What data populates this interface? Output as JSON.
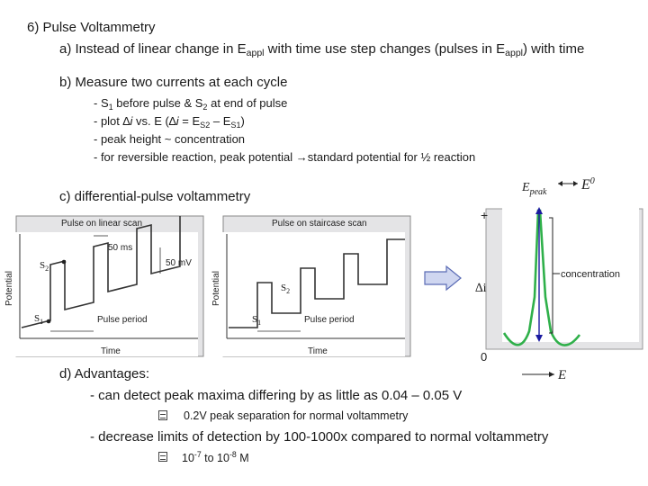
{
  "slide": {
    "heading": "6) Pulse  Voltammetry",
    "a_pre": "a) Instead of linear change in E",
    "a_sub1": "appl",
    "a_mid": " with time use step changes (pulses in E",
    "a_sub2": "appl",
    "a_post": ") with time",
    "b_title": "b) Measure two currents at each cycle",
    "b_items": {
      "i1_pre": "- S",
      "i1_s1": "1",
      "i1_mid": " before pulse & S",
      "i1_s2": "2",
      "i1_post": " at end of pulse",
      "i2_pre": "- plot ∆",
      "i2_i": "i",
      "i2_mid": " vs. E  (∆",
      "i2_i2": "i",
      "i2_eq": " = E",
      "i2_sub1": "S2",
      "i2_dash": " – E",
      "i2_sub2": "S1",
      "i2_post": ")",
      "i3": "- peak height ~ concentration",
      "i4": "- for reversible reaction, peak potential →standard potential for ½ reaction"
    },
    "c_title": "c) differential-pulse voltammetry",
    "d_title": "d) Advantages:",
    "d_item1": "- can detect peak maxima differing by as little as 0.04 – 0.05 V",
    "d_sub1": "0.2V peak separation for normal voltammetry",
    "d_item2": "- decrease limits of detection by 100-1000x compared to normal voltammetry",
    "d_sub2_pre": "10",
    "d_sub2_exp1": "-7",
    "d_sub2_mid": " to 10",
    "d_sub2_exp2": "-8",
    "d_sub2_post": " M"
  },
  "figure_linear": {
    "title": "Pulse on linear scan",
    "y_label": "Potential",
    "x_label": "Time",
    "ann_ms": "50 ms",
    "ann_mv": "50 mV",
    "s1": "S",
    "s2": "S",
    "sub1": "1",
    "sub2": "2",
    "period": "Pulse period"
  },
  "figure_staircase": {
    "title": "Pulse on staircase scan",
    "y_label": "Potential",
    "x_label": "Time",
    "s1": "S",
    "s2": "S",
    "sub1": "1",
    "sub2": "2",
    "period": "Pulse period"
  },
  "figure_peak": {
    "epeak": "E",
    "epeak_sub": "peak",
    "e0": "E",
    "e0_sup": "0",
    "plus": "+",
    "y_label": "∆i",
    "zero": "0",
    "x_label": "E",
    "concentration": "concentration"
  },
  "colors": {
    "curve": "#2fb04a",
    "accent": "#1a1aa0",
    "arrow_fill": "#cfd6f0",
    "arrow_stroke": "#5a6bb5"
  }
}
